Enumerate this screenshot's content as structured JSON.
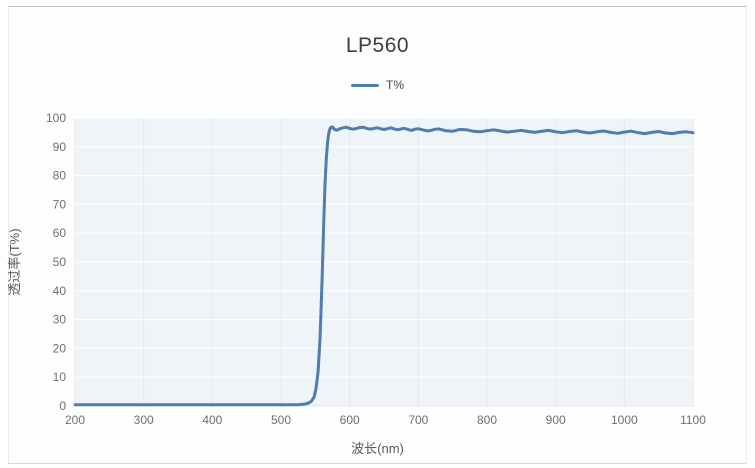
{
  "header": {
    "title": "LP560"
  },
  "legend": {
    "label": "T%"
  },
  "colors": {
    "series_line": "#4e7dae",
    "plot_background": "#eff4f8",
    "grid_horizontal": "#ffffff",
    "grid_vertical": "#e2e7ec",
    "tick_text": "#6e6e6e",
    "title_text": "#3d3d3d"
  },
  "chart_data": {
    "type": "line",
    "title": "LP560",
    "xlabel": "波长(nm)",
    "ylabel": "透过率(T%)",
    "xlim": [
      200,
      1100
    ],
    "ylim": [
      0,
      100
    ],
    "x_ticks": [
      200,
      300,
      400,
      500,
      600,
      700,
      800,
      900,
      1000,
      1100
    ],
    "y_ticks": [
      0,
      10,
      20,
      30,
      40,
      50,
      60,
      70,
      80,
      90,
      100
    ],
    "grid": true,
    "legend_position": "top",
    "series": [
      {
        "name": "T%",
        "color": "#4e7dae",
        "points": [
          [
            200,
            0.4
          ],
          [
            230,
            0.4
          ],
          [
            260,
            0.4
          ],
          [
            290,
            0.4
          ],
          [
            320,
            0.4
          ],
          [
            350,
            0.4
          ],
          [
            380,
            0.4
          ],
          [
            410,
            0.4
          ],
          [
            440,
            0.4
          ],
          [
            470,
            0.4
          ],
          [
            500,
            0.4
          ],
          [
            515,
            0.4
          ],
          [
            525,
            0.5
          ],
          [
            533,
            0.6
          ],
          [
            539,
            0.9
          ],
          [
            544,
            1.6
          ],
          [
            548,
            3
          ],
          [
            551,
            6
          ],
          [
            554,
            12
          ],
          [
            557,
            24
          ],
          [
            560,
            45
          ],
          [
            562,
            62
          ],
          [
            564,
            76
          ],
          [
            566,
            86
          ],
          [
            568,
            92
          ],
          [
            570,
            95.3
          ],
          [
            572,
            96.6
          ],
          [
            575,
            96.9
          ],
          [
            578,
            96.0
          ],
          [
            582,
            95.8
          ],
          [
            586,
            96.3
          ],
          [
            590,
            96.6
          ],
          [
            595,
            96.8
          ],
          [
            600,
            96.4
          ],
          [
            605,
            96.1
          ],
          [
            610,
            96.4
          ],
          [
            615,
            96.7
          ],
          [
            620,
            96.8
          ],
          [
            625,
            96.4
          ],
          [
            630,
            96.1
          ],
          [
            635,
            96.4
          ],
          [
            640,
            96.6
          ],
          [
            645,
            96.3
          ],
          [
            650,
            96.0
          ],
          [
            655,
            96.3
          ],
          [
            660,
            96.6
          ],
          [
            665,
            96.2
          ],
          [
            670,
            95.9
          ],
          [
            675,
            96.2
          ],
          [
            680,
            96.4
          ],
          [
            685,
            96.0
          ],
          [
            690,
            95.7
          ],
          [
            695,
            96.1
          ],
          [
            700,
            96.3
          ],
          [
            710,
            95.7
          ],
          [
            715,
            95.5
          ],
          [
            720,
            95.8
          ],
          [
            725,
            96.1
          ],
          [
            730,
            96.2
          ],
          [
            740,
            95.6
          ],
          [
            750,
            95.4
          ],
          [
            755,
            95.7
          ],
          [
            760,
            96.0
          ],
          [
            770,
            95.9
          ],
          [
            780,
            95.4
          ],
          [
            790,
            95.2
          ],
          [
            800,
            95.6
          ],
          [
            810,
            95.9
          ],
          [
            820,
            95.5
          ],
          [
            830,
            95.1
          ],
          [
            840,
            95.4
          ],
          [
            850,
            95.7
          ],
          [
            860,
            95.3
          ],
          [
            870,
            95.0
          ],
          [
            880,
            95.4
          ],
          [
            890,
            95.7
          ],
          [
            900,
            95.2
          ],
          [
            910,
            94.9
          ],
          [
            920,
            95.3
          ],
          [
            930,
            95.6
          ],
          [
            940,
            95.1
          ],
          [
            950,
            94.8
          ],
          [
            960,
            95.2
          ],
          [
            970,
            95.5
          ],
          [
            980,
            95.0
          ],
          [
            990,
            94.7
          ],
          [
            1000,
            95.1
          ],
          [
            1010,
            95.4
          ],
          [
            1020,
            94.9
          ],
          [
            1030,
            94.6
          ],
          [
            1040,
            95.0
          ],
          [
            1050,
            95.3
          ],
          [
            1060,
            94.8
          ],
          [
            1070,
            94.6
          ],
          [
            1080,
            95.0
          ],
          [
            1090,
            95.2
          ],
          [
            1100,
            94.9
          ]
        ]
      }
    ]
  }
}
